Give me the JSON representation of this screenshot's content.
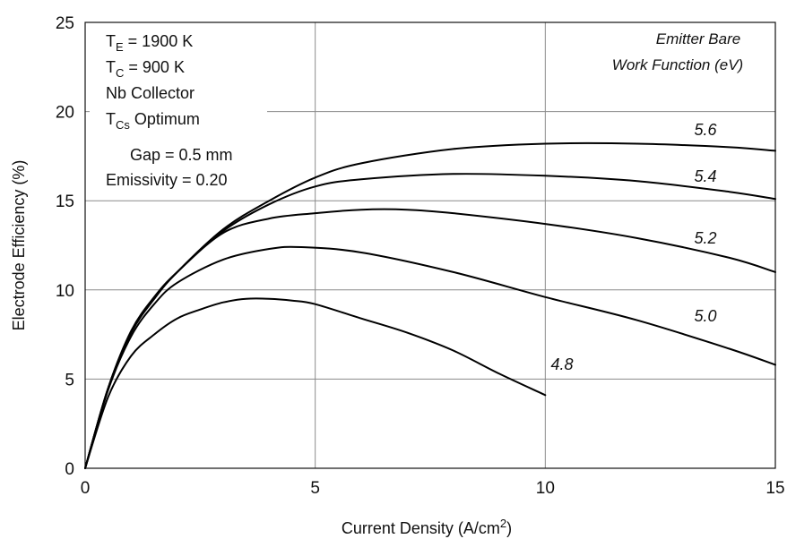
{
  "chart_data": {
    "type": "line",
    "xlabel": "Current Density (A/cm",
    "xlabel_sup": "2",
    "xlabel_tail": ")",
    "ylabel": "Electrode Efficiency (%)",
    "xlim": [
      0,
      15
    ],
    "ylim": [
      0,
      25
    ],
    "xticks": [
      0,
      5,
      10,
      15
    ],
    "yticks": [
      0,
      5,
      10,
      15,
      20,
      25
    ],
    "grid": true,
    "legend_title": [
      "Emitter Bare",
      "Work Function (eV)"
    ],
    "conditions": {
      "te_main": "T",
      "te_sub": "E",
      "te_value": " = 1900 K",
      "tc_main": "T",
      "tc_sub": "C",
      "tc_value": " = 900 K",
      "collector": "Nb Collector",
      "tcs_main": "T",
      "tcs_sub": "Cs",
      "tcs_value": " Optimum",
      "gap": "Gap = 0.5 mm",
      "emissivity": "Emissivity = 0.20"
    },
    "series": [
      {
        "name": "5.6",
        "x": [
          0,
          0.5,
          1,
          1.5,
          2,
          3,
          4,
          5,
          6,
          8,
          10,
          12,
          14,
          15
        ],
        "y": [
          0,
          4.5,
          7.6,
          9.5,
          11.0,
          13.4,
          15.0,
          16.3,
          17.1,
          17.9,
          18.2,
          18.2,
          18.0,
          17.8
        ]
      },
      {
        "name": "5.4",
        "x": [
          0,
          0.5,
          1,
          1.5,
          2,
          3,
          4,
          5,
          6,
          8,
          10,
          12,
          14,
          15
        ],
        "y": [
          0,
          4.5,
          7.6,
          9.5,
          11.0,
          13.3,
          14.8,
          15.8,
          16.2,
          16.5,
          16.4,
          16.1,
          15.5,
          15.1
        ]
      },
      {
        "name": "5.2",
        "x": [
          0,
          0.5,
          1,
          1.5,
          2,
          3,
          4,
          5,
          6,
          7,
          8,
          10,
          12,
          14,
          15
        ],
        "y": [
          0,
          4.5,
          7.7,
          9.6,
          11.0,
          13.2,
          14.0,
          14.3,
          14.5,
          14.5,
          14.3,
          13.7,
          12.9,
          11.8,
          11.0
        ]
      },
      {
        "name": "5.0",
        "x": [
          0,
          0.5,
          1,
          1.5,
          2,
          3,
          4,
          4.7,
          6,
          8,
          10,
          12,
          14,
          15
        ],
        "y": [
          0,
          4.4,
          7.4,
          9.2,
          10.4,
          11.7,
          12.3,
          12.4,
          12.1,
          11.0,
          9.6,
          8.3,
          6.7,
          5.8
        ]
      },
      {
        "name": "4.8",
        "x": [
          0,
          0.5,
          1,
          1.5,
          2,
          2.5,
          3,
          3.5,
          4,
          4.5,
          5,
          6,
          7,
          8,
          9,
          10
        ],
        "y": [
          0,
          4.0,
          6.3,
          7.5,
          8.4,
          8.9,
          9.3,
          9.5,
          9.5,
          9.4,
          9.2,
          8.4,
          7.6,
          6.6,
          5.3,
          4.1
        ]
      }
    ]
  }
}
